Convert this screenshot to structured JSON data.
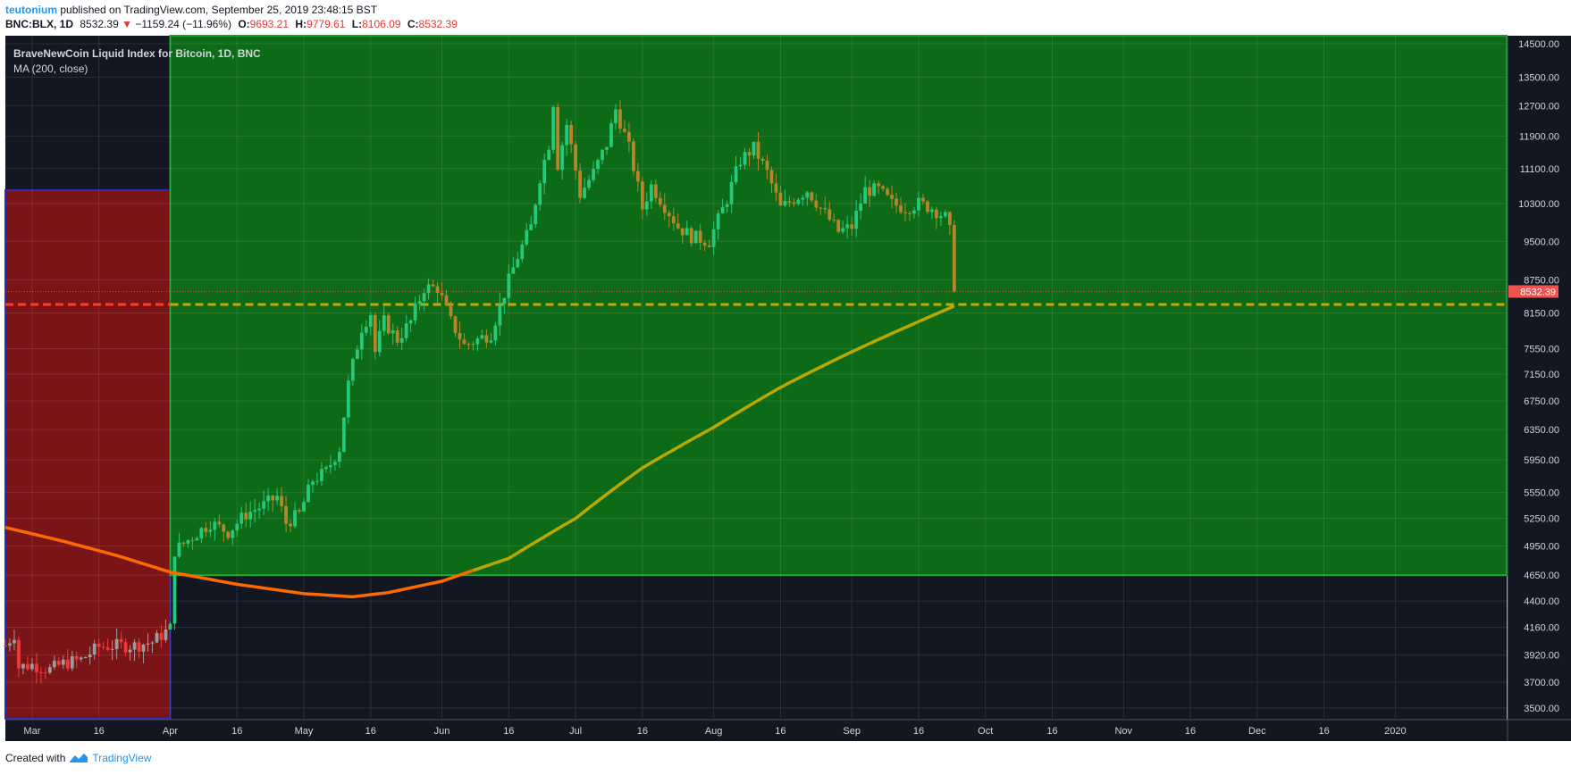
{
  "header": {
    "author": "teutonium",
    "published_text": "published on TradingView.com, September 25, 2019 23:48:15 BST",
    "symbol": "BNC:BLX, 1D",
    "last": "8532.39",
    "down_arrow": "▼",
    "change": "−1159.24 (−11.96%)",
    "o_label": "O:",
    "o_value": "9693.21",
    "h_label": "H:",
    "h_value": "9779.61",
    "l_label": "L:",
    "l_value": "8106.09",
    "c_label": "C:",
    "c_value": "8532.39"
  },
  "legend": {
    "title": "BraveNewCoin Liquid Index for Bitcoin, 1D, BNC",
    "indicator": "MA (200, close)"
  },
  "footer": {
    "created_with": "Created with",
    "brand": "TradingView"
  },
  "colors": {
    "bg": "#131722",
    "green_zone": "#0d6a16",
    "red_zone": "#7a1417",
    "up_candle": "#26c97a",
    "down_candle": "#b5862a",
    "pre_up": "#9c9c9c",
    "pre_down": "#ef3a3a",
    "ma_orange": "#ff6a00",
    "ma_olive": "#b9a800",
    "dash_red": "#ff3b2f",
    "dash_gold": "#c9a800",
    "price_tag": "#ef5350"
  },
  "chart_data": {
    "type": "candlestick",
    "title": "BraveNewCoin Liquid Index for Bitcoin, 1D, BNC",
    "y_axis_scale": "log",
    "ylim": [
      3420,
      14750
    ],
    "x_range": [
      "2019-02-23",
      "2020-01-26"
    ],
    "y_ticks": [
      "14500.00",
      "13500.00",
      "12700.00",
      "11900.00",
      "11100.00",
      "10300.00",
      "9500.00",
      "8750.00",
      "8150.00",
      "7550.00",
      "7150.00",
      "6750.00",
      "6350.00",
      "5950.00",
      "5550.00",
      "5250.00",
      "4950.00",
      "4650.00",
      "4400.00",
      "4160.00",
      "3920.00",
      "3700.00",
      "3500.00"
    ],
    "x_ticks": [
      {
        "label": "Mar",
        "date": "2019-03-01"
      },
      {
        "label": "16",
        "date": "2019-03-16"
      },
      {
        "label": "Apr",
        "date": "2019-04-01"
      },
      {
        "label": "16",
        "date": "2019-04-16"
      },
      {
        "label": "May",
        "date": "2019-05-01"
      },
      {
        "label": "16",
        "date": "2019-05-16"
      },
      {
        "label": "Jun",
        "date": "2019-06-01"
      },
      {
        "label": "16",
        "date": "2019-06-16"
      },
      {
        "label": "Jul",
        "date": "2019-07-01"
      },
      {
        "label": "16",
        "date": "2019-07-16"
      },
      {
        "label": "Aug",
        "date": "2019-08-01"
      },
      {
        "label": "16",
        "date": "2019-08-16"
      },
      {
        "label": "Sep",
        "date": "2019-09-01"
      },
      {
        "label": "16",
        "date": "2019-09-16"
      },
      {
        "label": "Oct",
        "date": "2019-10-01"
      },
      {
        "label": "16",
        "date": "2019-10-16"
      },
      {
        "label": "Nov",
        "date": "2019-11-01"
      },
      {
        "label": "16",
        "date": "2019-11-16"
      },
      {
        "label": "Dec",
        "date": "2019-12-01"
      },
      {
        "label": "16",
        "date": "2019-12-16"
      },
      {
        "label": "2020",
        "date": "2020-01-01"
      }
    ],
    "last_price_label": "8532.39",
    "last_price": 8532.39,
    "close_path": [
      [
        "2019-02-23",
        4000
      ],
      [
        "2019-02-25",
        4100
      ],
      [
        "2019-02-26",
        3820
      ],
      [
        "2019-03-01",
        3840
      ],
      [
        "2019-03-05",
        3800
      ],
      [
        "2019-03-08",
        3850
      ],
      [
        "2019-03-12",
        3880
      ],
      [
        "2019-03-16",
        3990
      ],
      [
        "2019-03-20",
        4000
      ],
      [
        "2019-03-24",
        4000
      ],
      [
        "2019-03-28",
        4030
      ],
      [
        "2019-03-31",
        4120
      ],
      [
        "2019-04-01",
        4150
      ],
      [
        "2019-04-02",
        4900
      ],
      [
        "2019-04-06",
        5050
      ],
      [
        "2019-04-10",
        5200
      ],
      [
        "2019-04-14",
        5100
      ],
      [
        "2019-04-18",
        5300
      ],
      [
        "2019-04-22",
        5400
      ],
      [
        "2019-04-25",
        5500
      ],
      [
        "2019-04-27",
        5200
      ],
      [
        "2019-04-30",
        5300
      ],
      [
        "2019-05-03",
        5700
      ],
      [
        "2019-05-06",
        5800
      ],
      [
        "2019-05-09",
        6100
      ],
      [
        "2019-05-11",
        7000
      ],
      [
        "2019-05-14",
        7900
      ],
      [
        "2019-05-16",
        8150
      ],
      [
        "2019-05-17",
        7500
      ],
      [
        "2019-05-19",
        8000
      ],
      [
        "2019-05-22",
        7700
      ],
      [
        "2019-05-25",
        8000
      ],
      [
        "2019-05-28",
        8600
      ],
      [
        "2019-05-31",
        8600
      ],
      [
        "2019-06-03",
        8000
      ],
      [
        "2019-06-06",
        7600
      ],
      [
        "2019-06-09",
        7700
      ],
      [
        "2019-06-12",
        7800
      ],
      [
        "2019-06-15",
        8500
      ],
      [
        "2019-06-18",
        9200
      ],
      [
        "2019-06-21",
        9800
      ],
      [
        "2019-06-23",
        10900
      ],
      [
        "2019-06-25",
        11700
      ],
      [
        "2019-06-26",
        12800
      ],
      [
        "2019-06-27",
        11200
      ],
      [
        "2019-06-29",
        12200
      ],
      [
        "2019-07-02",
        10500
      ],
      [
        "2019-07-05",
        11000
      ],
      [
        "2019-07-08",
        11700
      ],
      [
        "2019-07-10",
        12600
      ],
      [
        "2019-07-13",
        11600
      ],
      [
        "2019-07-16",
        10200
      ],
      [
        "2019-07-18",
        10700
      ],
      [
        "2019-07-20",
        10400
      ],
      [
        "2019-07-24",
        9800
      ],
      [
        "2019-07-27",
        9600
      ],
      [
        "2019-07-31",
        9500
      ],
      [
        "2019-08-04",
        10400
      ],
      [
        "2019-08-07",
        11300
      ],
      [
        "2019-08-10",
        11600
      ],
      [
        "2019-08-13",
        11000
      ],
      [
        "2019-08-16",
        10200
      ],
      [
        "2019-08-19",
        10400
      ],
      [
        "2019-08-22",
        10600
      ],
      [
        "2019-08-25",
        10200
      ],
      [
        "2019-08-29",
        9700
      ],
      [
        "2019-09-01",
        9800
      ],
      [
        "2019-09-04",
        10600
      ],
      [
        "2019-09-07",
        10600
      ],
      [
        "2019-09-10",
        10300
      ],
      [
        "2019-09-13",
        10200
      ],
      [
        "2019-09-16",
        10300
      ],
      [
        "2019-09-19",
        10200
      ],
      [
        "2019-09-22",
        10000
      ],
      [
        "2019-09-23",
        9700
      ],
      [
        "2019-09-24",
        8532
      ]
    ],
    "ma_200": [
      [
        "2019-02-23",
        5150
      ],
      [
        "2019-03-08",
        5000
      ],
      [
        "2019-03-20",
        4850
      ],
      [
        "2019-04-01",
        4680
      ],
      [
        "2019-04-16",
        4560
      ],
      [
        "2019-05-01",
        4470
      ],
      [
        "2019-05-12",
        4440
      ],
      [
        "2019-05-20",
        4480
      ],
      [
        "2019-06-01",
        4590
      ],
      [
        "2019-06-16",
        4820
      ],
      [
        "2019-07-01",
        5250
      ],
      [
        "2019-07-16",
        5850
      ],
      [
        "2019-08-01",
        6380
      ],
      [
        "2019-08-16",
        6950
      ],
      [
        "2019-09-01",
        7500
      ],
      [
        "2019-09-16",
        8000
      ],
      [
        "2019-09-24",
        8270
      ]
    ],
    "zones": [
      {
        "color": "red",
        "from": "2019-02-23",
        "to": "2019-04-01",
        "low": 3420,
        "high": 10600
      },
      {
        "color": "green",
        "from": "2019-04-01",
        "to": "2020-01-26",
        "low": 4650,
        "high": 14750
      }
    ],
    "horizontal_lines": [
      {
        "color": "red",
        "value": 8300,
        "from": "2019-02-23",
        "to": "2019-04-01",
        "style": "dashed"
      },
      {
        "color": "gold",
        "value": 8300,
        "from": "2019-04-01",
        "to": "2020-01-26",
        "style": "dashed"
      }
    ]
  }
}
